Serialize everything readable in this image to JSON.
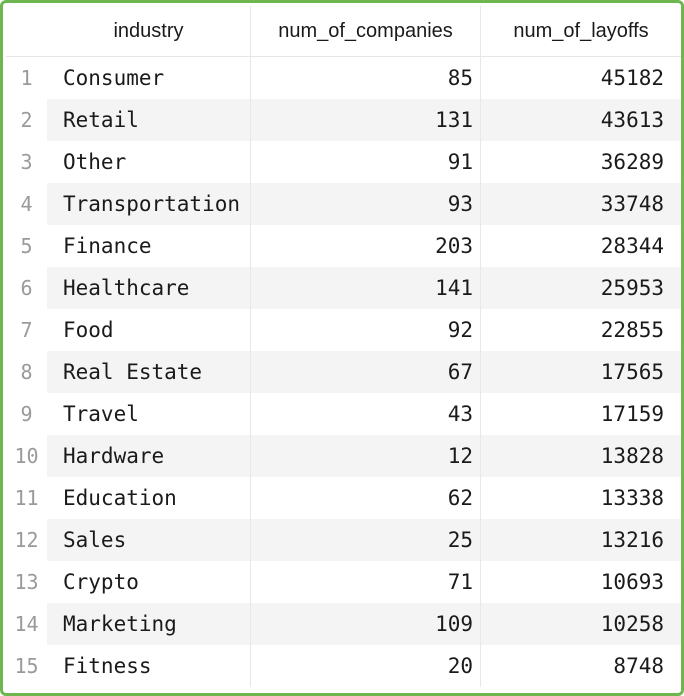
{
  "table": {
    "columns": [
      "industry",
      "num_of_companies",
      "num_of_layoffs"
    ],
    "rows": [
      {
        "index": "1",
        "industry": "Consumer",
        "num_of_companies": "85",
        "num_of_layoffs": "45182"
      },
      {
        "index": "2",
        "industry": "Retail",
        "num_of_companies": "131",
        "num_of_layoffs": "43613"
      },
      {
        "index": "3",
        "industry": "Other",
        "num_of_companies": "91",
        "num_of_layoffs": "36289"
      },
      {
        "index": "4",
        "industry": "Transportation",
        "num_of_companies": "93",
        "num_of_layoffs": "33748"
      },
      {
        "index": "5",
        "industry": "Finance",
        "num_of_companies": "203",
        "num_of_layoffs": "28344"
      },
      {
        "index": "6",
        "industry": "Healthcare",
        "num_of_companies": "141",
        "num_of_layoffs": "25953"
      },
      {
        "index": "7",
        "industry": "Food",
        "num_of_companies": "92",
        "num_of_layoffs": "22855"
      },
      {
        "index": "8",
        "industry": "Real Estate",
        "num_of_companies": "67",
        "num_of_layoffs": "17565"
      },
      {
        "index": "9",
        "industry": "Travel",
        "num_of_companies": "43",
        "num_of_layoffs": "17159"
      },
      {
        "index": "10",
        "industry": "Hardware",
        "num_of_companies": "12",
        "num_of_layoffs": "13828"
      },
      {
        "index": "11",
        "industry": "Education",
        "num_of_companies": "62",
        "num_of_layoffs": "13338"
      },
      {
        "index": "12",
        "industry": "Sales",
        "num_of_companies": "25",
        "num_of_layoffs": "13216"
      },
      {
        "index": "13",
        "industry": "Crypto",
        "num_of_companies": "71",
        "num_of_layoffs": "10693"
      },
      {
        "index": "14",
        "industry": "Marketing",
        "num_of_companies": "109",
        "num_of_layoffs": "10258"
      },
      {
        "index": "15",
        "industry": "Fitness",
        "num_of_companies": "20",
        "num_of_layoffs": "8748"
      }
    ]
  },
  "colors": {
    "frame_border": "#6db650",
    "stripe": "#f4f4f4",
    "index_text": "#9a9a9a"
  }
}
